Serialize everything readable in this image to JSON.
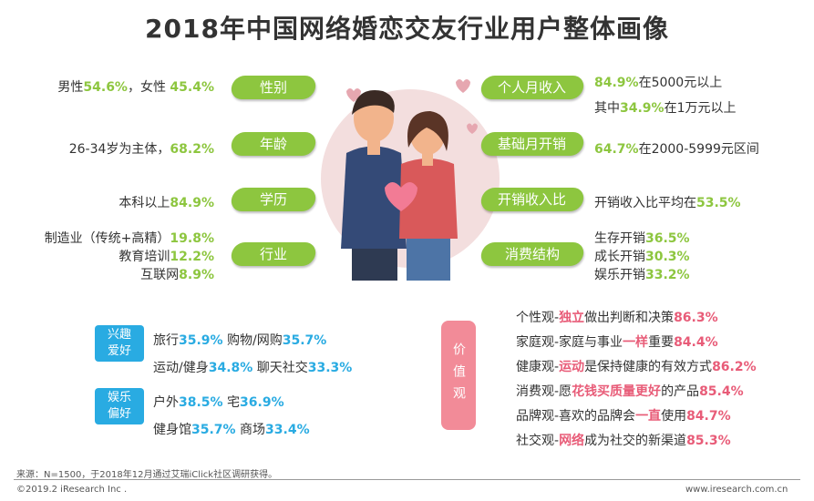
{
  "title": "2018年中国网络婚恋交友行业用户整体画像",
  "left": {
    "gender": {
      "label": "性别",
      "t1": "男性",
      "v1": "54.6%",
      "t2": "，女性 ",
      "v2": "45.4%"
    },
    "age": {
      "label": "年龄",
      "t1": "26-34岁为主体，",
      "v1": "68.2%"
    },
    "education": {
      "label": "学历",
      "t1": "本科以上",
      "v1": "84.9%"
    },
    "industry": {
      "label": "行业",
      "lines": [
        {
          "t": "制造业（传统+高精）",
          "v": "19.8%"
        },
        {
          "t": "教育培训",
          "v": "12.2%"
        },
        {
          "t": "互联网",
          "v": "8.9%"
        }
      ]
    }
  },
  "right": {
    "income": {
      "label": "个人月收入",
      "v1": "84.9%",
      "t1": "在5000元以上",
      "t2": "其中",
      "v2": "34.9%",
      "t3": "在1万元以上"
    },
    "spend": {
      "label": "基础月开销",
      "v1": "64.7%",
      "t1": "在2000-5999元区间"
    },
    "ratio": {
      "label": "开销收入比",
      "t1": "开销收入比平均在",
      "v1": "53.5%"
    },
    "structure": {
      "label": "消费结构",
      "lines": [
        {
          "t": "生存开销",
          "v": "36.5%"
        },
        {
          "t": "成长开销",
          "v": "30.3%"
        },
        {
          "t": "娱乐开销",
          "v": "33.2%"
        }
      ]
    }
  },
  "interest": {
    "label_1": "兴趣",
    "label_2": "爱好",
    "row1": [
      {
        "t": "旅行",
        "v": "35.9%"
      },
      {
        "t": " 购物/网购",
        "v": "35.7%"
      }
    ],
    "row2": [
      {
        "t": "运动/健身",
        "v": "34.8%"
      },
      {
        "t": " 聊天社交",
        "v": "33.3%"
      }
    ]
  },
  "entertainment": {
    "label_1": "娱乐",
    "label_2": "偏好",
    "row1": [
      {
        "t": "户外",
        "v": "38.5%"
      },
      {
        "t": " 宅",
        "v": "36.9%"
      }
    ],
    "row2": [
      {
        "t": "健身馆",
        "v": "35.7%"
      },
      {
        "t": " 商场",
        "v": "33.4%"
      }
    ]
  },
  "values": {
    "label": "价值观",
    "items": [
      {
        "a": "个性观-",
        "h": "独立",
        "b": "做出判断和决策",
        "v": "86.3%"
      },
      {
        "a": "家庭观-家庭与事业",
        "h": "一样",
        "b": "重要",
        "v": "84.4%"
      },
      {
        "a": "健康观-",
        "h": "运动",
        "b": "是保持健康的有效方式",
        "v": "86.2%"
      },
      {
        "a": "消费观-愿",
        "h": "花钱买质量更好",
        "b": "的产品",
        "v": "85.4%"
      },
      {
        "a": "品牌观-喜欢的品牌会",
        "h": "一直",
        "b": "使用",
        "v": "84.7%"
      },
      {
        "a": "社交观-",
        "h": "网络",
        "b": "成为社交的新渠道",
        "v": "85.3%"
      }
    ]
  },
  "footer": {
    "source": "来源：N=1500，于2018年12月通过艾瑞iClick社区调研获得。",
    "copyright": "©2019.2 iResearch Inc .",
    "url": "www.iresearch.com.cn"
  }
}
